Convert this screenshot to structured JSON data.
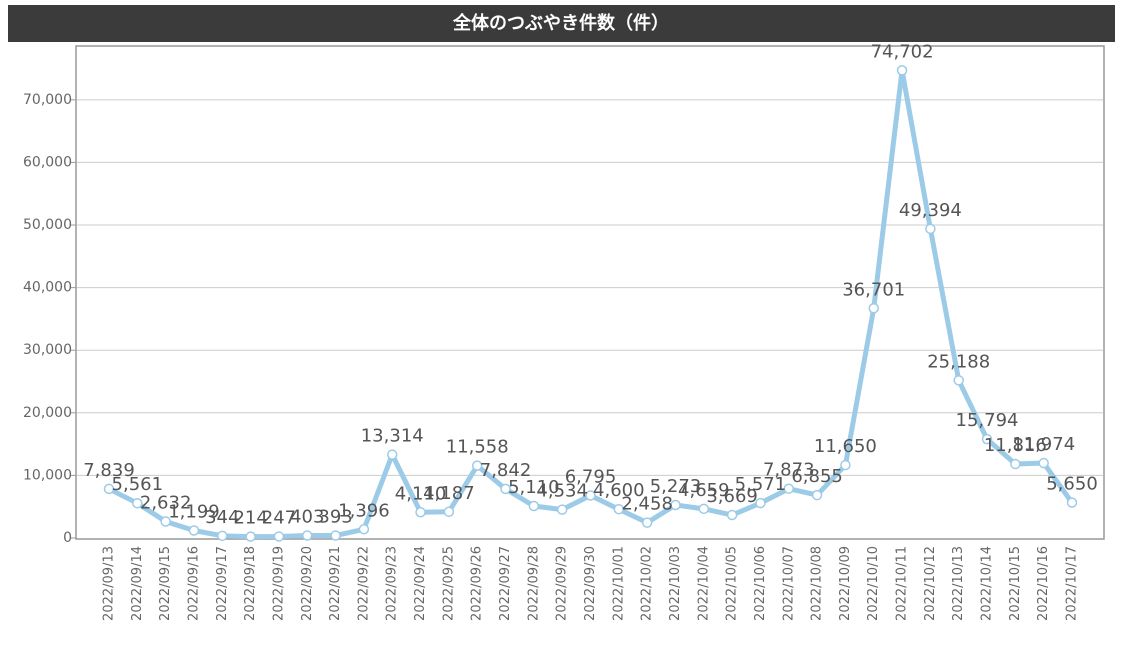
{
  "chart_data": {
    "type": "line",
    "title": "全体のつぶやき件数（件）",
    "categories": [
      "2022/09/13",
      "2022/09/14",
      "2022/09/15",
      "2022/09/16",
      "2022/09/17",
      "2022/09/18",
      "2022/09/19",
      "2022/09/20",
      "2022/09/21",
      "2022/09/22",
      "2022/09/23",
      "2022/09/24",
      "2022/09/25",
      "2022/09/26",
      "2022/09/27",
      "2022/09/28",
      "2022/09/29",
      "2022/09/30",
      "2022/10/01",
      "2022/10/02",
      "2022/10/03",
      "2022/10/04",
      "2022/10/05",
      "2022/10/06",
      "2022/10/07",
      "2022/10/08",
      "2022/10/09",
      "2022/10/10",
      "2022/10/11",
      "2022/10/12",
      "2022/10/13",
      "2022/10/14",
      "2022/10/15",
      "2022/10/16",
      "2022/10/17"
    ],
    "values": [
      7839,
      5561,
      2632,
      1199,
      344,
      214,
      247,
      403,
      393,
      1396,
      13314,
      4110,
      4187,
      11558,
      7842,
      5110,
      4534,
      6795,
      4600,
      2458,
      5273,
      4659,
      3669,
      5571,
      7873,
      6855,
      11650,
      36701,
      74702,
      49394,
      25188,
      15794,
      11816,
      11974,
      5650
    ],
    "value_labels": [
      "7,839",
      "5,561",
      "2,632",
      "1,199",
      "344",
      "214",
      "247",
      "403",
      "393",
      "1,396",
      "13,314",
      "4,110",
      "4,187",
      "11,558",
      "7,842",
      "5,110",
      "4,534",
      "6,795",
      "4,600",
      "2,458",
      "5,273",
      "4,659",
      "3,669",
      "5,571",
      "7,873",
      "6,855",
      "11,650",
      "36,701",
      "74,702",
      "49,394",
      "25,188",
      "15,794",
      "11,816",
      "11,974",
      "5,650"
    ],
    "color": "#9ccbe8",
    "ylim": [
      0,
      78600
    ],
    "yticks": [
      0,
      {
        "value": 10000,
        "label": "10,000"
      },
      {
        "value": 20000,
        "label": "20,000"
      },
      {
        "value": 30000,
        "label": "30,000"
      },
      {
        "value": 40000,
        "label": "40,000"
      },
      {
        "value": 50000,
        "label": "50,000"
      },
      {
        "value": 60000,
        "label": "60,000"
      },
      {
        "value": 70000,
        "label": "70,000"
      }
    ],
    "grid": true
  }
}
